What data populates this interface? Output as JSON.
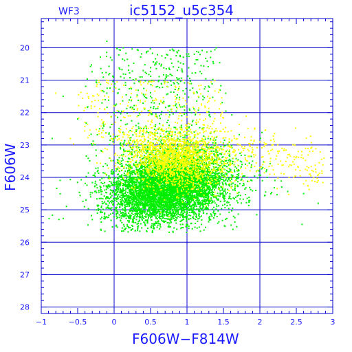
{
  "chart_data": {
    "type": "scatter",
    "title": "ic5152_u5c354",
    "subtitle": "WF3",
    "xlabel": "F606W−F814W",
    "ylabel": "F606W",
    "xlim": [
      -1,
      3
    ],
    "ylim": [
      28.2,
      19.1
    ],
    "y_inverted": true,
    "grid": true,
    "x_ticks": [
      -1,
      -0.5,
      0,
      0.5,
      1,
      1.5,
      2,
      2.5,
      3
    ],
    "x_tick_labels": [
      "−1",
      "−0.5",
      "0",
      "0.5",
      "1",
      "1.5",
      "2",
      "2.5",
      "3"
    ],
    "y_ticks": [
      20,
      21,
      22,
      23,
      24,
      25,
      26,
      27,
      28
    ],
    "y_tick_labels": [
      "20",
      "21",
      "22",
      "23",
      "24",
      "25",
      "26",
      "27",
      "28"
    ],
    "colors": {
      "axes": "#0000cc",
      "grid": "#0000cc",
      "text": "#1a1aff"
    },
    "series": [
      {
        "color": "#00ee00",
        "center_color": 0.75,
        "center_mag": 24.3,
        "approx_count": 6500,
        "points": [
          [
            -0.85,
            22.8
          ],
          [
            -0.7,
            21.5
          ],
          [
            -0.5,
            22.2
          ],
          [
            -0.3,
            23.0
          ],
          [
            -0.2,
            22.5
          ],
          [
            -0.1,
            21.4
          ],
          [
            -0.05,
            20.3
          ],
          [
            -0.1,
            19.8
          ],
          [
            0.0,
            22.0
          ],
          [
            0.1,
            23.5
          ],
          [
            0.2,
            24.2
          ],
          [
            0.3,
            24.0
          ],
          [
            0.4,
            24.6
          ],
          [
            0.5,
            24.8
          ],
          [
            0.6,
            24.5
          ],
          [
            0.7,
            24.9
          ],
          [
            0.8,
            25.0
          ],
          [
            0.9,
            24.7
          ],
          [
            1.0,
            25.2
          ],
          [
            1.1,
            24.9
          ],
          [
            1.2,
            24.6
          ],
          [
            1.3,
            24.3
          ],
          [
            1.5,
            24.0
          ],
          [
            1.7,
            23.8
          ],
          [
            1.9,
            23.5
          ],
          [
            2.1,
            24.0
          ],
          [
            2.3,
            24.3
          ],
          [
            2.6,
            24.5
          ],
          [
            2.8,
            24.8
          ],
          [
            0.95,
            20.5
          ],
          [
            1.1,
            20.2
          ],
          [
            1.2,
            20.8
          ],
          [
            0.5,
            21.5
          ],
          [
            0.3,
            22.4
          ],
          [
            0.8,
            23.6
          ]
        ]
      },
      {
        "color": "#ffff00",
        "center_color": 0.85,
        "center_mag": 23.4,
        "approx_count": 1800,
        "points": [
          [
            -0.8,
            21.4
          ],
          [
            -0.6,
            22.8
          ],
          [
            -0.4,
            22.3
          ],
          [
            0.0,
            21.8
          ],
          [
            0.2,
            22.6
          ],
          [
            0.4,
            23.0
          ],
          [
            0.6,
            23.2
          ],
          [
            0.8,
            23.4
          ],
          [
            1.0,
            23.3
          ],
          [
            1.2,
            23.1
          ],
          [
            1.4,
            23.5
          ],
          [
            1.6,
            23.6
          ],
          [
            1.8,
            23.4
          ],
          [
            2.0,
            23.7
          ],
          [
            2.2,
            23.9
          ],
          [
            2.4,
            24.0
          ],
          [
            2.6,
            24.2
          ],
          [
            2.8,
            24.1
          ],
          [
            0.3,
            21.0
          ],
          [
            0.9,
            21.8
          ]
        ]
      }
    ]
  }
}
